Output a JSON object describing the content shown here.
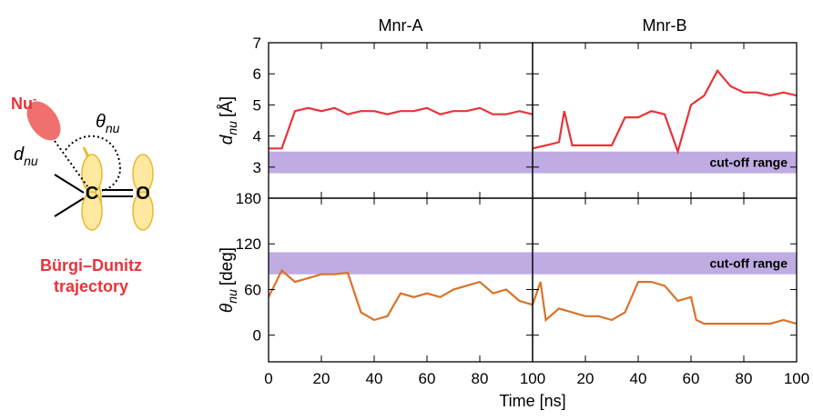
{
  "diagram": {
    "nucleophile": "Nu",
    "charge": "-",
    "angle_symbol": "θ",
    "angle_subscript": "nu",
    "distance_symbol": "d",
    "distance_subscript": "nu",
    "carbon": "C",
    "oxygen": "O",
    "caption_line1": "Bürgi–Dunitz",
    "caption_line2": "trajectory"
  },
  "figure": {
    "xlabel": "Time [ns]"
  },
  "chart_data": [
    {
      "type": "line",
      "title": "Mnr-A",
      "ylabel": {
        "symbol": "d",
        "subscript": "nu",
        "unit": "[Å]"
      },
      "xlim": [
        0,
        100
      ],
      "xticks": [
        0,
        20,
        40,
        60,
        80,
        100
      ],
      "show_xtick_labels": false,
      "ylim": [
        2,
        7
      ],
      "yticks": [
        3,
        4,
        5,
        6,
        7
      ],
      "show_ytick_labels": true,
      "band": [
        2.8,
        3.5
      ],
      "band_color": "#9b7fd4",
      "series": [
        {
          "color": "#e8333a",
          "x": [
            0,
            5,
            10,
            15,
            20,
            25,
            30,
            35,
            40,
            45,
            50,
            55,
            60,
            65,
            70,
            75,
            80,
            85,
            90,
            95,
            100
          ],
          "values": [
            3.6,
            3.6,
            4.8,
            4.9,
            4.8,
            4.9,
            4.7,
            4.8,
            4.8,
            4.7,
            4.8,
            4.8,
            4.9,
            4.7,
            4.8,
            4.8,
            4.9,
            4.7,
            4.7,
            4.8,
            4.7
          ]
        }
      ]
    },
    {
      "type": "line",
      "title": "Mnr-B",
      "xlim": [
        0,
        100
      ],
      "xticks": [
        0,
        20,
        40,
        60,
        80,
        100
      ],
      "show_xtick_labels": false,
      "ylim": [
        2,
        7
      ],
      "yticks": [
        3,
        4,
        5,
        6,
        7
      ],
      "show_ytick_labels": false,
      "band": [
        2.8,
        3.5
      ],
      "band_color": "#9b7fd4",
      "band_label": "cut-off range",
      "series": [
        {
          "color": "#e8333a",
          "x": [
            0,
            5,
            10,
            12,
            15,
            20,
            25,
            30,
            35,
            40,
            45,
            50,
            55,
            60,
            65,
            70,
            75,
            80,
            85,
            90,
            95,
            100
          ],
          "values": [
            3.6,
            3.7,
            3.8,
            4.8,
            3.7,
            3.7,
            3.7,
            3.7,
            4.6,
            4.6,
            4.8,
            4.7,
            3.5,
            5.0,
            5.3,
            6.1,
            5.6,
            5.4,
            5.4,
            5.3,
            5.4,
            5.3
          ]
        }
      ]
    },
    {
      "type": "line",
      "ylabel": {
        "symbol": "θ",
        "subscript": "nu",
        "unit": "[deg]"
      },
      "xlim": [
        0,
        100
      ],
      "xticks": [
        0,
        20,
        40,
        60,
        80,
        100
      ],
      "show_xtick_labels": true,
      "ylim": [
        -35,
        180
      ],
      "yticks": [
        0,
        60,
        120,
        180
      ],
      "show_ytick_labels": true,
      "band": [
        80,
        109
      ],
      "band_color": "#9b7fd4",
      "series": [
        {
          "color": "#d9732a",
          "x": [
            0,
            5,
            10,
            15,
            20,
            25,
            30,
            35,
            40,
            45,
            50,
            55,
            60,
            65,
            70,
            75,
            80,
            85,
            90,
            95,
            100
          ],
          "values": [
            50,
            85,
            70,
            75,
            80,
            80,
            82,
            30,
            20,
            25,
            55,
            50,
            55,
            50,
            60,
            65,
            70,
            55,
            60,
            45,
            40
          ]
        }
      ]
    },
    {
      "type": "line",
      "xlim": [
        0,
        100
      ],
      "xticks": [
        20,
        40,
        60,
        80,
        100
      ],
      "show_xtick_labels": true,
      "ylim": [
        -35,
        180
      ],
      "yticks": [
        0,
        60,
        120,
        180
      ],
      "show_ytick_labels": false,
      "band": [
        80,
        109
      ],
      "band_color": "#9b7fd4",
      "band_label": "cut-off range",
      "series": [
        {
          "color": "#d9732a",
          "x": [
            0,
            3,
            5,
            10,
            15,
            20,
            25,
            30,
            35,
            40,
            45,
            50,
            55,
            60,
            62,
            65,
            70,
            80,
            90,
            95,
            100
          ],
          "values": [
            40,
            70,
            20,
            35,
            30,
            25,
            25,
            20,
            30,
            70,
            70,
            65,
            45,
            50,
            20,
            15,
            15,
            15,
            15,
            20,
            15
          ]
        }
      ]
    }
  ]
}
